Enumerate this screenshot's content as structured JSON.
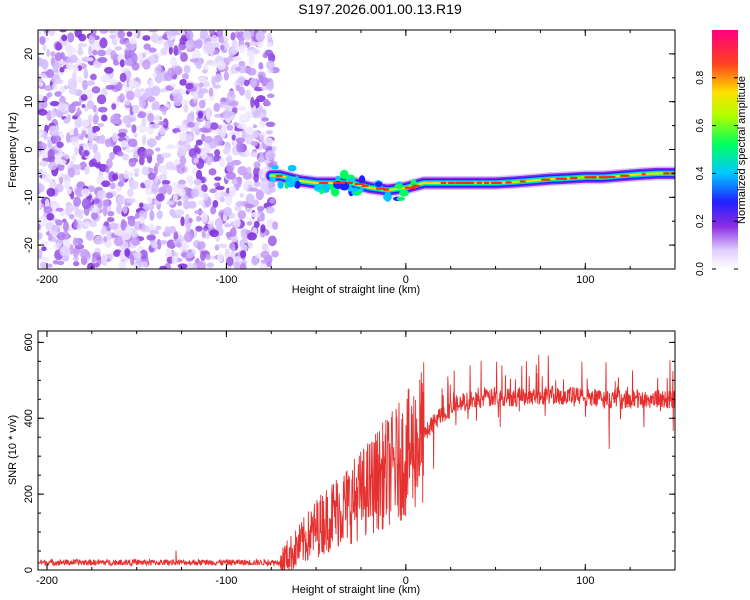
{
  "title": "S197.2026.001.00.13.R19",
  "chart_data": [
    {
      "type": "heatmap",
      "xlabel": "Height of straight line (km)",
      "ylabel": "Frequency (Hz)",
      "xlim": [
        -205,
        150
      ],
      "ylim": [
        -25,
        25
      ],
      "xticks": [
        -200,
        -100,
        0,
        100
      ],
      "yticks": [
        -20,
        -10,
        0,
        10,
        20
      ],
      "colorbar": {
        "label": "Normalized spectral amplitude",
        "range": [
          0,
          1
        ],
        "ticks": [
          "0.0",
          "0.2",
          "0.4",
          "0.6",
          "0.8"
        ]
      },
      "noise_region_x": [
        -205,
        -75
      ],
      "signal_track": {
        "x": [
          -75,
          -70,
          -60,
          -50,
          -40,
          -30,
          -20,
          -10,
          0,
          10,
          20,
          30,
          40,
          50,
          60,
          70,
          80,
          90,
          100,
          110,
          120,
          130,
          140,
          150
        ],
        "frequency": [
          -5.5,
          -5.5,
          -6.5,
          -7,
          -7,
          -7,
          -8,
          -8.5,
          -8,
          -7,
          -7,
          -7,
          -7,
          -7,
          -6.8,
          -6.5,
          -6.2,
          -6,
          -5.8,
          -5.8,
          -5.5,
          -5.2,
          -5,
          -5
        ]
      }
    },
    {
      "type": "line",
      "xlabel": "Height of straight line (km)",
      "ylabel": "SNR (10 * v/v)",
      "xlim": [
        -205,
        150
      ],
      "ylim": [
        0,
        630
      ],
      "xticks": [
        -200,
        -100,
        0,
        100
      ],
      "yticks": [
        0,
        200,
        400,
        600
      ],
      "series": [
        {
          "name": "SNR",
          "color": "#e53030",
          "envelope_x": [
            -205,
            -70,
            -60,
            -50,
            -40,
            -30,
            -20,
            -10,
            0,
            10,
            20,
            30,
            40,
            50,
            60,
            70,
            80,
            90,
            100,
            110,
            120,
            130,
            140,
            150
          ],
          "envelope_mean": [
            20,
            20,
            60,
            110,
            150,
            180,
            220,
            260,
            300,
            360,
            410,
            440,
            450,
            455,
            455,
            460,
            460,
            460,
            455,
            450,
            450,
            450,
            450,
            450
          ]
        }
      ]
    }
  ]
}
